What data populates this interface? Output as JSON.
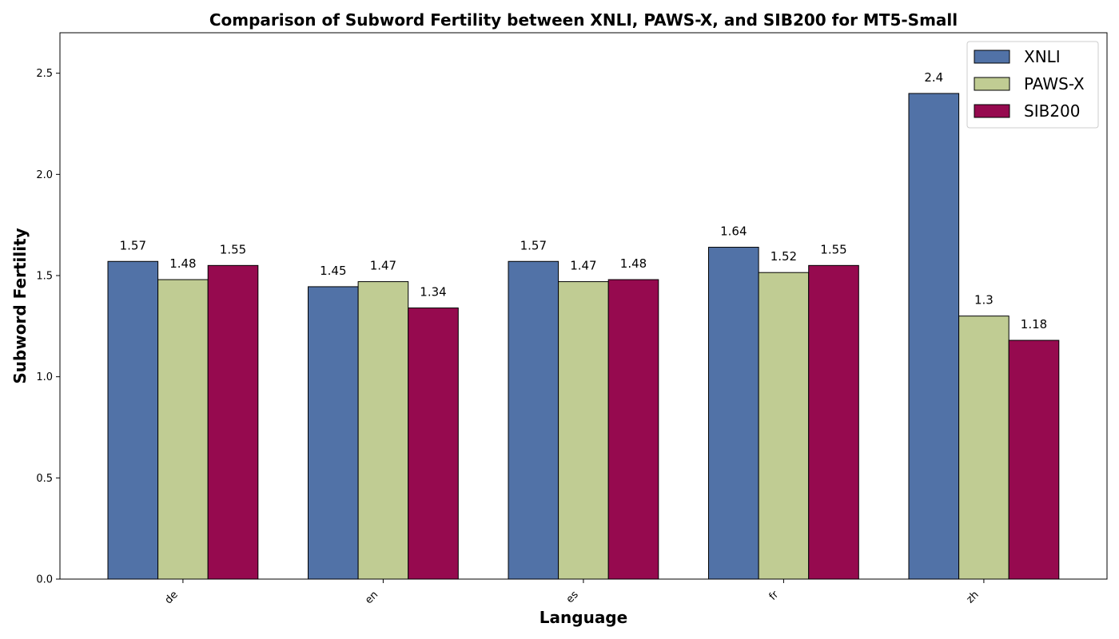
{
  "chart_data": {
    "type": "bar",
    "title": "Comparison of Subword Fertility between XNLI, PAWS-X, and SIB200 for MT5-Small",
    "xlabel": "Language",
    "ylabel": "Subword Fertility",
    "categories": [
      "de",
      "en",
      "es",
      "fr",
      "zh"
    ],
    "series": [
      {
        "name": "XNLI",
        "color": "#5172a7",
        "values": [
          1.57,
          1.445,
          1.57,
          1.64,
          2.4
        ],
        "labels": [
          "1.57",
          "1.45",
          "1.57",
          "1.64",
          "2.4"
        ]
      },
      {
        "name": "PAWS-X",
        "color": "#c0cc93",
        "values": [
          1.48,
          1.47,
          1.47,
          1.515,
          1.3
        ],
        "labels": [
          "1.48",
          "1.47",
          "1.47",
          "1.52",
          "1.3"
        ]
      },
      {
        "name": "SIB200",
        "color": "#960a4f",
        "values": [
          1.55,
          1.34,
          1.48,
          1.55,
          1.18
        ],
        "labels": [
          "1.55",
          "1.34",
          "1.48",
          "1.55",
          "1.18"
        ]
      }
    ],
    "ylim": [
      0,
      2.7
    ],
    "yticks": [
      "0.0",
      "0.5",
      "1.0",
      "1.5",
      "2.0",
      "2.5"
    ],
    "grid": false,
    "legend_position": "top-right"
  }
}
